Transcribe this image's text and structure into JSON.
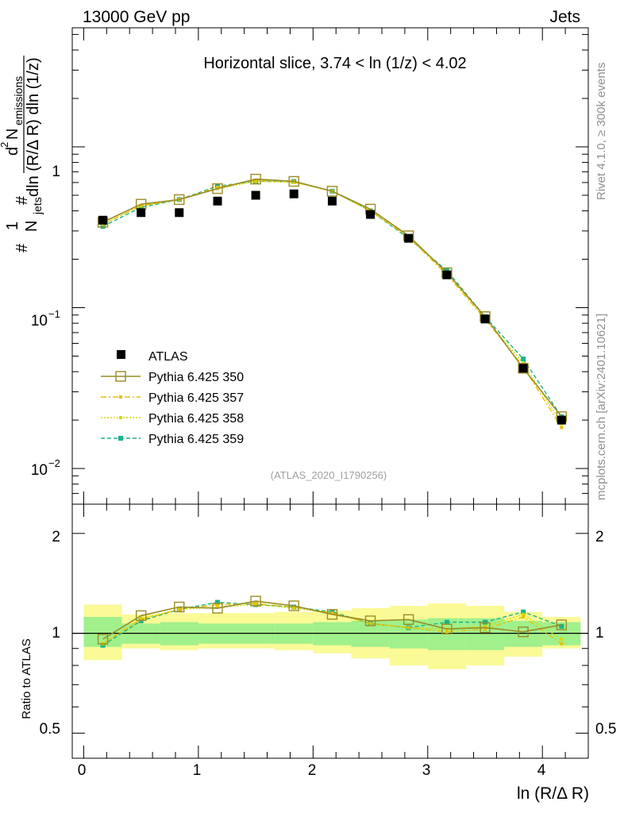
{
  "header": {
    "left": "13000 GeV pp",
    "right": "Jets"
  },
  "side_text": {
    "rivet": "Rivet 4.1.0, ≥ 300k events",
    "mcplots": "mcplots.cern.ch [arXiv:2401.10621]"
  },
  "colors": {
    "atlas": "#000000",
    "p350": "#9a8c24",
    "p357": "#e6c000",
    "p358": "#d8d800",
    "p359": "#18b48a",
    "band_inner": "#a0f08c",
    "band_outer": "#fafa96"
  },
  "chart_data": [
    {
      "type": "line",
      "title": "Horizontal slice, 3.74 < ln (1/z) < 4.02",
      "watermark": "(ATLAS_2020_I1790256)",
      "ylabel": "1/N_jets d²N_emissions / dln(R/ΔR) dln(1/z)",
      "ylabel_parts": {
        "one": "1",
        "njets": "N",
        "jets": "jets",
        "hash": "#",
        "d2": "d",
        "sq": "2",
        "nem": "N",
        "emissions": "emissions",
        "den": "dln (R/Δ R) dln (1/z)"
      },
      "yscale": "log",
      "ylim": [
        0.006,
        5.5
      ],
      "xlim": [
        -0.1,
        4.4
      ],
      "ytick_labels": [
        {
          "value": 0.01,
          "base": "10",
          "exp": "−2"
        },
        {
          "value": 0.1,
          "base": "10",
          "exp": "−1"
        },
        {
          "value": 1,
          "base": "1",
          "exp": ""
        }
      ],
      "legend_position": "bottom-left",
      "x": [
        0.167,
        0.5,
        0.833,
        1.167,
        1.5,
        1.833,
        2.167,
        2.5,
        2.833,
        3.167,
        3.5,
        3.833,
        4.167
      ],
      "series": [
        {
          "name": "ATLAS",
          "key": "atlas",
          "values": [
            0.35,
            0.39,
            0.39,
            0.46,
            0.5,
            0.51,
            0.46,
            0.38,
            0.27,
            0.16,
            0.085,
            0.042,
            0.02
          ]
        },
        {
          "name": "Pythia 6.425 350",
          "key": "p350",
          "values": [
            0.34,
            0.44,
            0.47,
            0.55,
            0.63,
            0.61,
            0.53,
            0.41,
            0.28,
            0.165,
            0.088,
            0.042,
            0.021
          ]
        },
        {
          "name": "Pythia 6.425 357",
          "key": "p357",
          "values": [
            0.33,
            0.43,
            0.47,
            0.56,
            0.62,
            0.61,
            0.53,
            0.4,
            0.275,
            0.16,
            0.085,
            0.043,
            0.018
          ]
        },
        {
          "name": "Pythia 6.425 358",
          "key": "p358",
          "values": [
            0.33,
            0.43,
            0.47,
            0.55,
            0.61,
            0.6,
            0.53,
            0.4,
            0.275,
            0.165,
            0.086,
            0.045,
            0.019
          ]
        },
        {
          "name": "Pythia 6.425 359",
          "key": "p359",
          "values": [
            0.32,
            0.42,
            0.47,
            0.57,
            0.61,
            0.61,
            0.53,
            0.4,
            0.27,
            0.17,
            0.088,
            0.048,
            0.021
          ]
        }
      ]
    },
    {
      "type": "line",
      "ylabel": "Ratio to ATLAS",
      "xlabel": "ln (R/Δ R)",
      "yscale": "log",
      "ylim": [
        0.42,
        2.45
      ],
      "xlim": [
        -0.1,
        4.4
      ],
      "xticks": [
        0,
        1,
        2,
        3,
        4
      ],
      "xtick_labels": [
        "0",
        "1",
        "2",
        "3",
        "4"
      ],
      "ytick_labels": [
        {
          "value": 0.5,
          "label": "0.5"
        },
        {
          "value": 1,
          "label": "1"
        },
        {
          "value": 2,
          "label": "2"
        }
      ],
      "x": [
        0.167,
        0.5,
        0.833,
        1.167,
        1.5,
        1.833,
        2.167,
        2.5,
        2.833,
        3.167,
        3.5,
        3.833,
        4.167
      ],
      "bins": [
        [
          0,
          0.333
        ],
        [
          0.333,
          0.667
        ],
        [
          0.667,
          1.0
        ],
        [
          1.0,
          1.333
        ],
        [
          1.333,
          1.667
        ],
        [
          1.667,
          2.0
        ],
        [
          2.0,
          2.333
        ],
        [
          2.333,
          2.667
        ],
        [
          2.667,
          3.0
        ],
        [
          3.0,
          3.333
        ],
        [
          3.333,
          3.667
        ],
        [
          3.667,
          4.0
        ],
        [
          4.0,
          4.333
        ]
      ],
      "band_inner": [
        [
          0.91,
          1.12
        ],
        [
          0.93,
          1.07
        ],
        [
          0.92,
          1.08
        ],
        [
          0.93,
          1.07
        ],
        [
          0.93,
          1.07
        ],
        [
          0.93,
          1.07
        ],
        [
          0.92,
          1.08
        ],
        [
          0.91,
          1.09
        ],
        [
          0.9,
          1.1
        ],
        [
          0.89,
          1.11
        ],
        [
          0.89,
          1.11
        ],
        [
          0.91,
          1.09
        ],
        [
          0.92,
          1.08
        ]
      ],
      "band_outer": [
        [
          0.83,
          1.22
        ],
        [
          0.9,
          1.14
        ],
        [
          0.89,
          1.15
        ],
        [
          0.9,
          1.15
        ],
        [
          0.9,
          1.15
        ],
        [
          0.89,
          1.16
        ],
        [
          0.87,
          1.17
        ],
        [
          0.84,
          1.19
        ],
        [
          0.8,
          1.21
        ],
        [
          0.78,
          1.23
        ],
        [
          0.8,
          1.21
        ],
        [
          0.85,
          1.16
        ],
        [
          0.9,
          1.12
        ]
      ],
      "series": [
        {
          "name": "Pythia 6.425 350",
          "key": "p350",
          "values": [
            0.96,
            1.13,
            1.2,
            1.19,
            1.25,
            1.21,
            1.14,
            1.09,
            1.1,
            1.03,
            1.04,
            1.01,
            1.06
          ]
        },
        {
          "name": "Pythia 6.425 357",
          "key": "p357",
          "values": [
            0.93,
            1.1,
            1.18,
            1.22,
            1.23,
            1.2,
            1.15,
            1.07,
            1.04,
            1.01,
            1.03,
            1.12,
            0.93
          ]
        },
        {
          "name": "Pythia 6.425 358",
          "key": "p358",
          "values": [
            0.93,
            1.11,
            1.18,
            1.2,
            1.22,
            1.19,
            1.15,
            1.07,
            1.04,
            1.03,
            1.05,
            1.14,
            0.96
          ]
        },
        {
          "name": "Pythia 6.425 359",
          "key": "p359",
          "values": [
            0.92,
            1.09,
            1.18,
            1.24,
            1.22,
            1.2,
            1.16,
            1.07,
            1.04,
            1.08,
            1.08,
            1.16,
            1.05
          ]
        }
      ]
    }
  ]
}
